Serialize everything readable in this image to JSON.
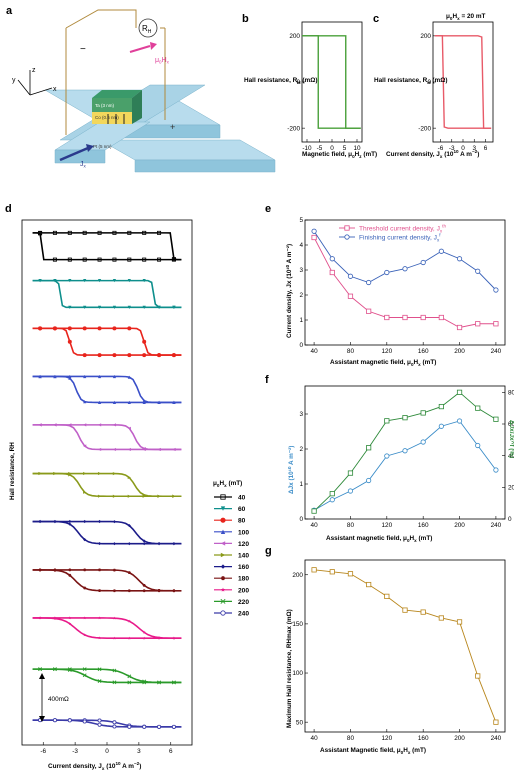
{
  "panel_labels": {
    "a": "a",
    "b": "b",
    "c": "c",
    "d": "d",
    "e": "e",
    "f": "f",
    "g": "g"
  },
  "schematic": {
    "rh_label": "R",
    "rh_sub": "H",
    "field_label": "μ",
    "field_sub": "0",
    "field_label2": "H",
    "field_sub2": "x",
    "jx_label": "J",
    "jx_sub": "x",
    "axis_x": "x",
    "axis_y": "y",
    "axis_z": "z",
    "minus": "−",
    "plus": "+",
    "layer_top": "Ta (3 nm)",
    "layer_mid": "Co (0.6 nm)",
    "layer_bot": "Pt (5 nm)",
    "colors": {
      "slab": "#8fc5dc",
      "slab_top": "#b8dced",
      "stack_top": "#3a9a6a",
      "stack_mid": "#f2d75c",
      "wire": "#b08a3c",
      "arrow_pink": "#e0409a",
      "arrow_blue": "#2a3a8c"
    }
  },
  "chart_data": [
    {
      "id": "b",
      "type": "line",
      "xlabel": "Magnetic field, μ0Hz (mT)",
      "ylabel": "Hall resistance, RH (mΩ)",
      "xlim": [
        -12,
        12
      ],
      "ylim": [
        -260,
        260
      ],
      "xticks": [
        "-10",
        "-5",
        "0",
        "5",
        "10"
      ],
      "yticks": [
        "-200",
        "0",
        "200"
      ],
      "color": "#4aa03a",
      "series": [
        {
          "x": [
            -12,
            -6,
            -5.5,
            -5.5,
            11.5
          ],
          "y": [
            200,
            200,
            200,
            -200,
            -200
          ]
        },
        {
          "x": [
            11.5,
            5.5,
            5.5,
            -12
          ],
          "y": [
            -200,
            -200,
            200,
            200
          ]
        }
      ]
    },
    {
      "id": "c",
      "type": "line",
      "annotation": "μ0Hx = 20 mT",
      "xlabel": "Current density, Jx (10^10 A m^-2)",
      "ylabel": "Hall resistance, RH (mΩ)",
      "xlim": [
        -8,
        8
      ],
      "ylim": [
        -260,
        260
      ],
      "xticks": [
        "-6",
        "-3",
        "0",
        "3",
        "6"
      ],
      "yticks": [
        "-200",
        "0",
        "200"
      ],
      "color": "#e85a68",
      "series": [
        {
          "x": [
            -7.5,
            4,
            5,
            5.5,
            7.5
          ],
          "y": [
            200,
            200,
            195,
            -200,
            -200
          ]
        },
        {
          "x": [
            7.5,
            -4,
            -5,
            -5.5,
            -7.5
          ],
          "y": [
            -200,
            -200,
            -195,
            200,
            200
          ]
        }
      ]
    },
    {
      "id": "d",
      "type": "line",
      "legend_title": "μ0Hx (mT)",
      "xlabel": "Current density, Jx (10^10 A m^-2)",
      "ylabel": "Hall resistance, RH",
      "scalebar": "400mΩ",
      "xlim": [
        -8,
        8
      ],
      "xticks": [
        "-6",
        "-3",
        "0",
        "3",
        "6"
      ],
      "series": [
        {
          "name": "40",
          "color": "#000000",
          "marker": "square",
          "sw": 6.2,
          "amp": 1.0,
          "soft": 0.05
        },
        {
          "name": "60",
          "color": "#0e8f8c",
          "marker": "tri-down",
          "sw": 4.4,
          "amp": 1.0,
          "soft": 0.15
        },
        {
          "name": "80",
          "color": "#e8241c",
          "marker": "circle",
          "sw": 3.5,
          "amp": 1.0,
          "soft": 0.3
        },
        {
          "name": "100",
          "color": "#3a4fc8",
          "marker": "tri-up",
          "sw": 2.9,
          "amp": 0.97,
          "soft": 0.45
        },
        {
          "name": "120",
          "color": "#c060c8",
          "marker": "tri-left",
          "sw": 2.6,
          "amp": 0.92,
          "soft": 0.55
        },
        {
          "name": "140",
          "color": "#8a9a1a",
          "marker": "tri-right",
          "sw": 2.6,
          "amp": 0.85,
          "soft": 0.65
        },
        {
          "name": "160",
          "color": "#1c1c8a",
          "marker": "diamond",
          "sw": 2.7,
          "amp": 0.83,
          "soft": 0.8
        },
        {
          "name": "180",
          "color": "#7a1414",
          "marker": "hexagon",
          "sw": 3.0,
          "amp": 0.78,
          "soft": 0.95
        },
        {
          "name": "200",
          "color": "#e81a8a",
          "marker": "star",
          "sw": 3.0,
          "amp": 0.76,
          "soft": 1.1
        },
        {
          "name": "220",
          "color": "#2a9a2a",
          "marker": "x-cross",
          "sw": 2.0,
          "amp": 0.5,
          "soft": 1.2
        },
        {
          "name": "240",
          "color": "#3a3aa8",
          "marker": "open-circle",
          "sw": 1.2,
          "amp": 0.25,
          "soft": 1.3
        }
      ]
    },
    {
      "id": "e",
      "type": "line",
      "xlabel": "Assistant magnetic field, μ0Hx (mT)",
      "ylabel": "Current density, Jx (10^10 A m^-2)",
      "xlim": [
        30,
        250
      ],
      "ylim": [
        0,
        5
      ],
      "xticks": [
        40,
        80,
        120,
        160,
        200,
        240
      ],
      "yticks": [
        0,
        1,
        2,
        3,
        4,
        5
      ],
      "x": [
        40,
        60,
        80,
        100,
        120,
        140,
        160,
        180,
        200,
        220,
        240
      ],
      "series": [
        {
          "name": "Threshold current density, Jx^th",
          "color": "#e0508c",
          "marker": "square",
          "values": [
            4.3,
            2.9,
            1.95,
            1.35,
            1.1,
            1.1,
            1.1,
            1.1,
            0.7,
            0.85,
            0.85
          ]
        },
        {
          "name": "Finishing current density, Jx^f",
          "color": "#3a62b8",
          "marker": "circle",
          "values": [
            4.55,
            3.45,
            2.75,
            2.5,
            2.9,
            3.05,
            3.3,
            3.75,
            3.45,
            2.95,
            2.2
          ]
        }
      ]
    },
    {
      "id": "f",
      "type": "line",
      "xlabel": "Assistant magnetic field, μ0Hx (mT)",
      "ylabel": "ΔJx (10^10 A m^-2)",
      "y2label": "ΔJx/Jx^f (%)",
      "xlim": [
        30,
        250
      ],
      "ylim": [
        0,
        3.8
      ],
      "y2lim": [
        0,
        84
      ],
      "xticks": [
        40,
        80,
        120,
        160,
        200,
        240
      ],
      "yticks": [
        0,
        1,
        2,
        3
      ],
      "y2ticks": [
        0,
        20,
        40,
        60,
        80
      ],
      "x": [
        40,
        60,
        80,
        100,
        120,
        140,
        160,
        180,
        200,
        220,
        240
      ],
      "series": [
        {
          "name": "ΔJx",
          "color": "#3a8cc8",
          "marker": "circle",
          "axis": "left",
          "values": [
            0.25,
            0.55,
            0.8,
            1.1,
            1.8,
            1.95,
            2.2,
            2.65,
            2.8,
            2.1,
            1.4
          ]
        },
        {
          "name": "ΔJx/Jx^f",
          "color": "#2e8a3a",
          "marker": "square",
          "axis": "right",
          "values": [
            5,
            16,
            29,
            45,
            62,
            64,
            67,
            71,
            80,
            70,
            63
          ]
        }
      ]
    },
    {
      "id": "g",
      "type": "line",
      "xlabel": "Assistant Magnetic field, μ0Hx (mT)",
      "ylabel": "Maximum Hall resistance, RH^max (mΩ)",
      "xlim": [
        30,
        250
      ],
      "ylim": [
        40,
        215
      ],
      "xticks": [
        40,
        80,
        120,
        160,
        200,
        240
      ],
      "yticks": [
        50,
        100,
        150,
        200
      ],
      "x": [
        40,
        60,
        80,
        100,
        120,
        140,
        160,
        180,
        200,
        220,
        240
      ],
      "series": [
        {
          "name": "RH^max",
          "color": "#b8861c",
          "marker": "square",
          "values": [
            205,
            203,
            201,
            190,
            178,
            164,
            162,
            156,
            152,
            97,
            50
          ]
        }
      ]
    }
  ]
}
